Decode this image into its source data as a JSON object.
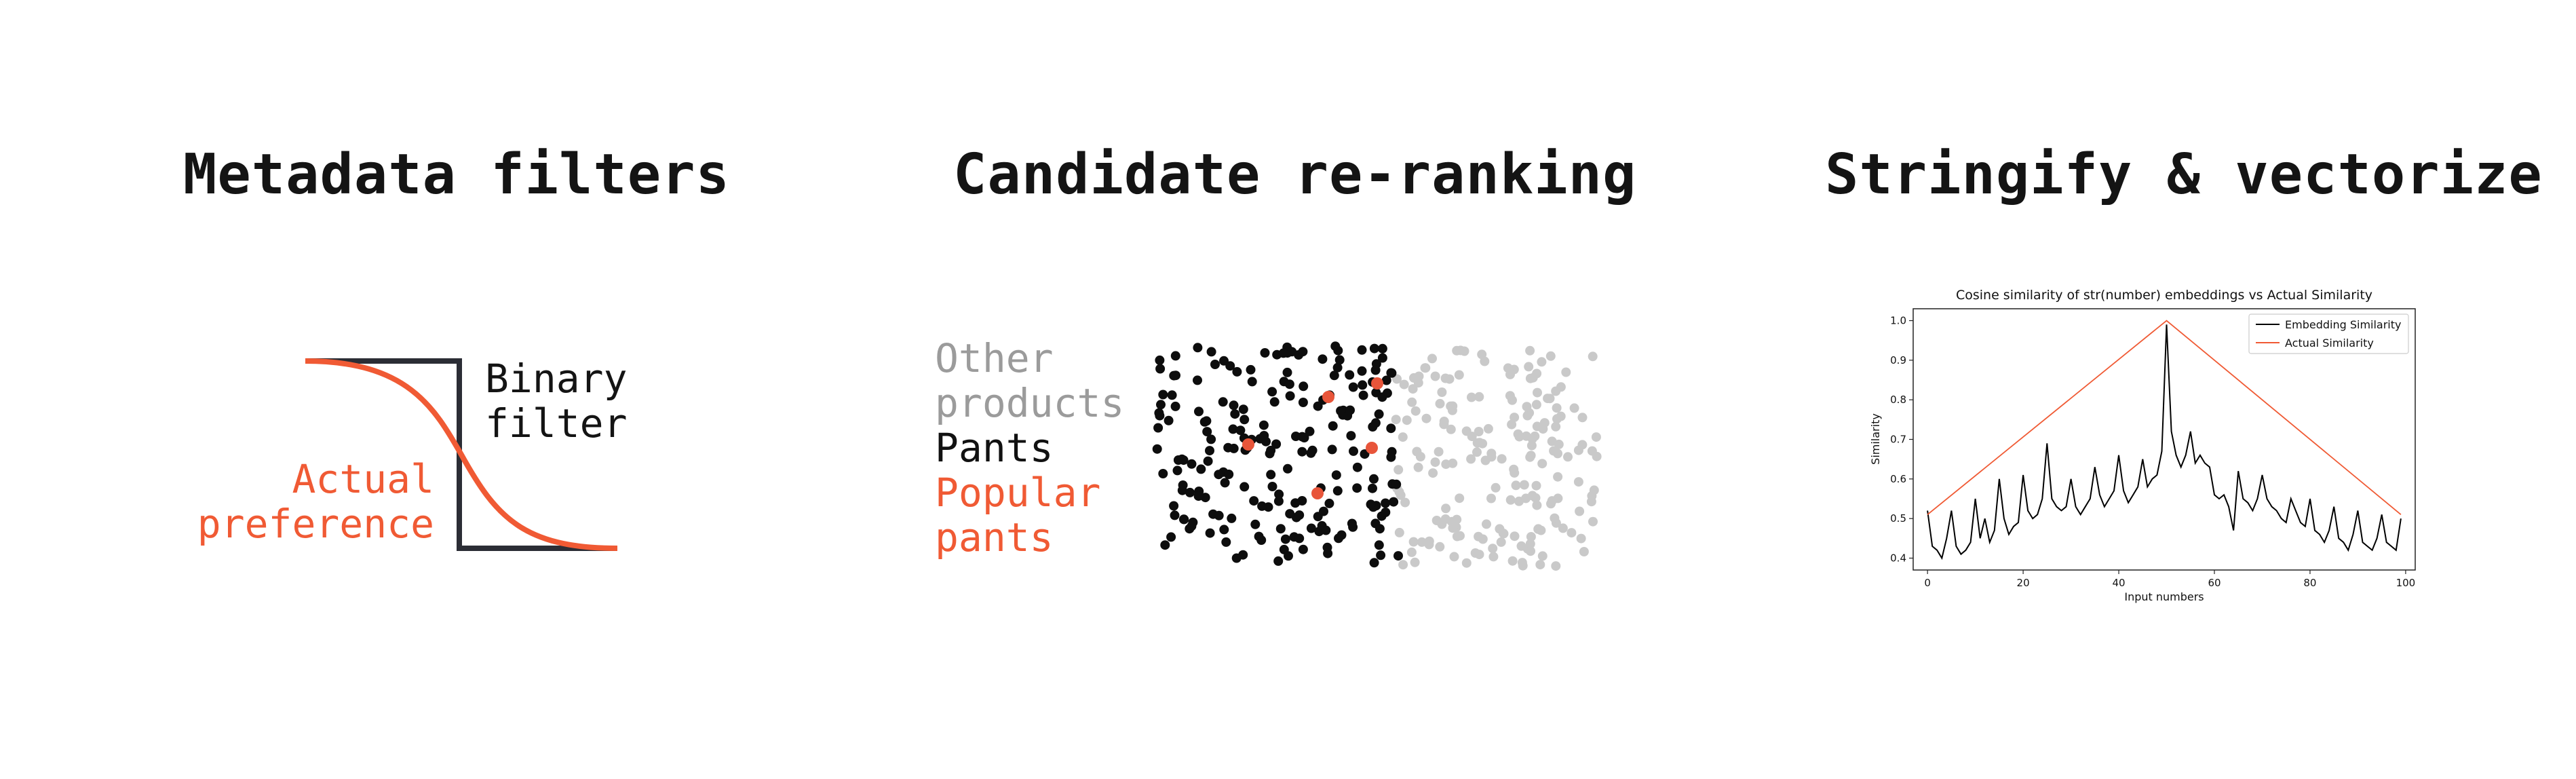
{
  "panels": {
    "metadata_filters": {
      "title": "Metadata filters",
      "binary_filter_label": [
        "Binary",
        "filter"
      ],
      "actual_preference_label": [
        "Actual",
        "preference"
      ],
      "colors": {
        "binary": "#2b2d35",
        "actual": "#f05a34"
      }
    },
    "candidate_reranking": {
      "title": "Candidate re-ranking",
      "legend": [
        {
          "text": "Other",
          "color": "#9b9b9b"
        },
        {
          "text": "products",
          "color": "#9b9b9b"
        },
        {
          "text": "Pants",
          "color": "#111111"
        },
        {
          "text": "Popular",
          "color": "#f05a34"
        },
        {
          "text": "pants",
          "color": "#f05a34"
        }
      ],
      "colors": {
        "other": "#c9c9c9",
        "pants": "#0d0d0d",
        "popular": "#e8553a"
      }
    },
    "stringify_vectorize": {
      "title": "Stringify & vectorize"
    }
  },
  "chart_data": {
    "type": "line",
    "title": "Cosine similarity of str(number) embeddings vs Actual Similarity",
    "xlabel": "Input numbers",
    "ylabel": "Similarity",
    "xlim": [
      -3,
      102
    ],
    "ylim": [
      0.37,
      1.03
    ],
    "xticks": [
      0,
      20,
      40,
      60,
      80,
      100
    ],
    "yticks": [
      0.4,
      0.5,
      0.6,
      0.7,
      0.8,
      0.9,
      1.0
    ],
    "legend_position": "top-right",
    "series": [
      {
        "name": "Embedding Similarity",
        "color": "#000000",
        "x": [
          0,
          1,
          2,
          3,
          4,
          5,
          6,
          7,
          8,
          9,
          10,
          11,
          12,
          13,
          14,
          15,
          16,
          17,
          18,
          19,
          20,
          21,
          22,
          23,
          24,
          25,
          26,
          27,
          28,
          29,
          30,
          31,
          32,
          33,
          34,
          35,
          36,
          37,
          38,
          39,
          40,
          41,
          42,
          43,
          44,
          45,
          46,
          47,
          48,
          49,
          50,
          51,
          52,
          53,
          54,
          55,
          56,
          57,
          58,
          59,
          60,
          61,
          62,
          63,
          64,
          65,
          66,
          67,
          68,
          69,
          70,
          71,
          72,
          73,
          74,
          75,
          76,
          77,
          78,
          79,
          80,
          81,
          82,
          83,
          84,
          85,
          86,
          87,
          88,
          89,
          90,
          91,
          92,
          93,
          94,
          95,
          96,
          97,
          98,
          99
        ],
        "values": [
          0.52,
          0.43,
          0.42,
          0.4,
          0.45,
          0.52,
          0.43,
          0.41,
          0.42,
          0.44,
          0.55,
          0.45,
          0.5,
          0.44,
          0.47,
          0.6,
          0.5,
          0.46,
          0.48,
          0.49,
          0.61,
          0.52,
          0.5,
          0.51,
          0.55,
          0.69,
          0.55,
          0.53,
          0.52,
          0.53,
          0.6,
          0.53,
          0.51,
          0.53,
          0.55,
          0.63,
          0.56,
          0.53,
          0.55,
          0.57,
          0.66,
          0.57,
          0.54,
          0.56,
          0.58,
          0.65,
          0.58,
          0.6,
          0.61,
          0.67,
          0.99,
          0.72,
          0.66,
          0.63,
          0.66,
          0.72,
          0.64,
          0.66,
          0.64,
          0.63,
          0.56,
          0.55,
          0.56,
          0.53,
          0.47,
          0.62,
          0.55,
          0.54,
          0.52,
          0.55,
          0.61,
          0.55,
          0.53,
          0.52,
          0.5,
          0.49,
          0.55,
          0.52,
          0.49,
          0.48,
          0.55,
          0.47,
          0.46,
          0.44,
          0.47,
          0.53,
          0.45,
          0.44,
          0.42,
          0.46,
          0.52,
          0.44,
          0.43,
          0.42,
          0.45,
          0.51,
          0.44,
          0.43,
          0.42,
          0.5
        ]
      },
      {
        "name": "Actual Similarity",
        "color": "#f05a34",
        "x": [
          0,
          50,
          99
        ],
        "values": [
          0.51,
          1.0,
          0.51
        ]
      }
    ]
  }
}
